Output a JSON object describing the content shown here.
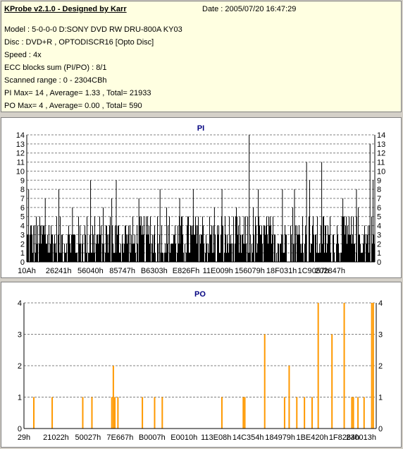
{
  "info": {
    "title": "KProbe v2.1.0 - Designed by Karr",
    "date": "Date : 2005/07/20 16:47:29",
    "lines": [
      "Model : 5-0-0-0 D:SONY    DVD RW DRU-800A  KY03",
      "Disc : DVD+R , OPTODISCR16 [Opto Disc]",
      "Speed : 4x",
      "ECC blocks sum (PI/PO) : 8/1",
      "Scanned range : 0 - 2304CBh",
      "PI Max= 14 , Average= 1.33 , Total= 21933",
      "PO Max= 4 , Average= 0.00 , Total= 590"
    ]
  },
  "colors": {
    "pi_bar": "#000000",
    "po_bar": "#ff9900",
    "title": "#000080",
    "grid": "#808080"
  },
  "chart_data": [
    {
      "type": "bar",
      "title": "PI",
      "ylim": [
        0,
        14
      ],
      "yticks": [
        0,
        1,
        2,
        3,
        4,
        5,
        6,
        7,
        8,
        9,
        10,
        11,
        12,
        13,
        14
      ],
      "xlim": [
        0,
        2304
      ],
      "xticks": [
        "10Ah",
        "26241h",
        "56040h",
        "85747h",
        "B6303h",
        "E826Fh",
        "11E009h",
        "156079h",
        "18F031h",
        "1C9057h",
        "202847h"
      ],
      "grid": true,
      "baseline_typical": 4,
      "spikes": [
        {
          "x": 10,
          "y": 8
        },
        {
          "x": 120,
          "y": 7
        },
        {
          "x": 210,
          "y": 8
        },
        {
          "x": 300,
          "y": 6
        },
        {
          "x": 420,
          "y": 9
        },
        {
          "x": 560,
          "y": 7
        },
        {
          "x": 590,
          "y": 9
        },
        {
          "x": 740,
          "y": 7
        },
        {
          "x": 880,
          "y": 8
        },
        {
          "x": 1010,
          "y": 7
        },
        {
          "x": 1100,
          "y": 8
        },
        {
          "x": 1240,
          "y": 6
        },
        {
          "x": 1290,
          "y": 8
        },
        {
          "x": 1470,
          "y": 14
        },
        {
          "x": 1530,
          "y": 8
        },
        {
          "x": 1690,
          "y": 8
        },
        {
          "x": 1770,
          "y": 8
        },
        {
          "x": 1850,
          "y": 11
        },
        {
          "x": 1870,
          "y": 9
        },
        {
          "x": 1950,
          "y": 11
        },
        {
          "x": 2090,
          "y": 7
        },
        {
          "x": 2180,
          "y": 8
        },
        {
          "x": 2270,
          "y": 13
        },
        {
          "x": 2290,
          "y": 9
        }
      ]
    },
    {
      "type": "bar",
      "title": "PO",
      "ylim": [
        0,
        4
      ],
      "yticks": [
        0,
        1,
        2,
        3,
        4
      ],
      "xlim": [
        0,
        2304
      ],
      "xticks": [
        "29h",
        "21022h",
        "50027h",
        "7E667h",
        "B0007h",
        "E0010h",
        "113E08h",
        "14C354h",
        "184979h",
        "1BE420h",
        "1F8264h",
        "230013h"
      ],
      "grid": true,
      "spikes": [
        {
          "x": 60,
          "y": 1
        },
        {
          "x": 180,
          "y": 1
        },
        {
          "x": 380,
          "y": 1
        },
        {
          "x": 440,
          "y": 1
        },
        {
          "x": 570,
          "y": 1
        },
        {
          "x": 580,
          "y": 2
        },
        {
          "x": 590,
          "y": 1
        },
        {
          "x": 610,
          "y": 1
        },
        {
          "x": 770,
          "y": 1
        },
        {
          "x": 850,
          "y": 1
        },
        {
          "x": 900,
          "y": 1
        },
        {
          "x": 1290,
          "y": 1
        },
        {
          "x": 1430,
          "y": 1
        },
        {
          "x": 1440,
          "y": 1
        },
        {
          "x": 1570,
          "y": 3
        },
        {
          "x": 1700,
          "y": 1
        },
        {
          "x": 1730,
          "y": 2
        },
        {
          "x": 1780,
          "y": 1
        },
        {
          "x": 1830,
          "y": 1
        },
        {
          "x": 1880,
          "y": 1
        },
        {
          "x": 1920,
          "y": 4
        },
        {
          "x": 2010,
          "y": 3
        },
        {
          "x": 2090,
          "y": 4
        },
        {
          "x": 2140,
          "y": 1
        },
        {
          "x": 2150,
          "y": 1
        },
        {
          "x": 2180,
          "y": 1
        },
        {
          "x": 2220,
          "y": 1
        },
        {
          "x": 2270,
          "y": 4
        },
        {
          "x": 2280,
          "y": 4
        }
      ]
    }
  ]
}
